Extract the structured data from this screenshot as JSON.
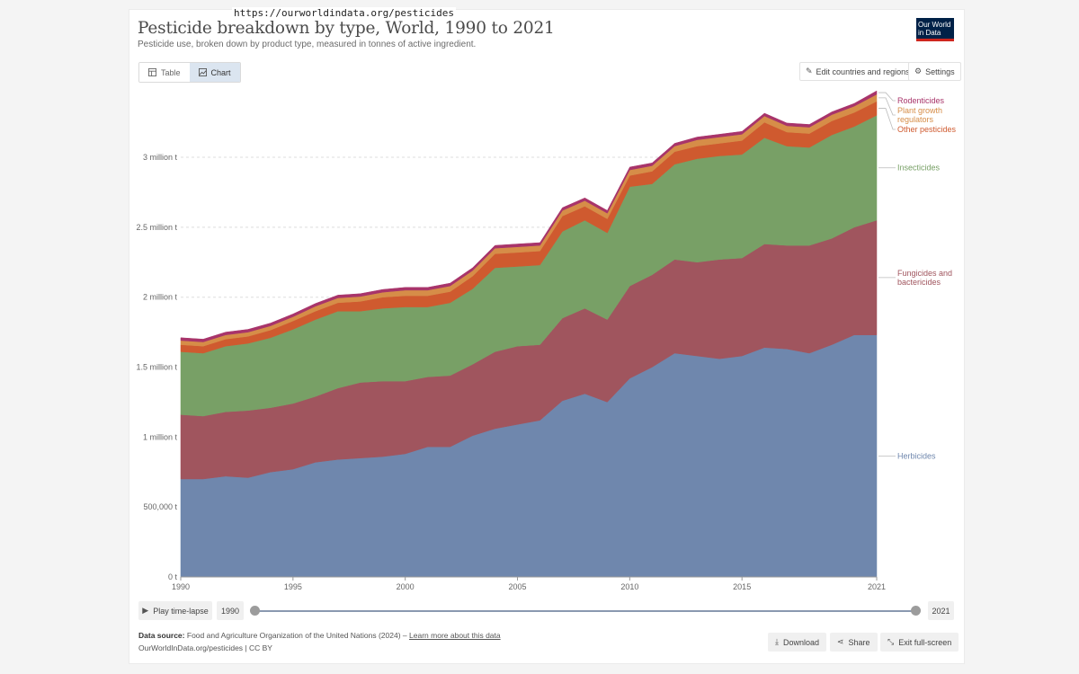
{
  "browser": {
    "url": "https://ourworldindata.org/pesticides"
  },
  "header": {
    "title": "Pesticide breakdown by type, World, 1990 to 2021",
    "subtitle": "Pesticide use, broken down by product type, measured in tonnes of active ingredient.",
    "logo_line1": "Our World",
    "logo_line2": "in Data"
  },
  "tabs": [
    {
      "label": "Table",
      "icon": "table-icon",
      "active": false
    },
    {
      "label": "Chart",
      "icon": "chart-icon",
      "active": true
    }
  ],
  "toolbar": {
    "edit_label": "Edit countries and regions",
    "settings_label": "Settings"
  },
  "controls": {
    "play_label": "Play time-lapse",
    "start_year": "1990",
    "end_year": "2021"
  },
  "footer": {
    "source_label": "Data source:",
    "source_text": "Food and Agriculture Organization of the United Nations (2024)",
    "source_sep": "–",
    "learn_more": "Learn more about this data",
    "license": "OurWorldInData.org/pesticides | CC BY",
    "download_label": "Download",
    "share_label": "Share",
    "fullscreen_label": "Exit full-screen"
  },
  "colors": {
    "herbicides": "#6f87ad",
    "fungicides": "#a0555e",
    "insecticides": "#78a066",
    "other": "#cf5a2f",
    "plant_growth": "#d68d48",
    "rodenticides": "#a8346a"
  },
  "chart_data": {
    "type": "area",
    "stacked": true,
    "title": "Pesticide breakdown by type, World, 1990 to 2021",
    "x_ticks": [
      1990,
      1995,
      2000,
      2005,
      2010,
      2015,
      2021
    ],
    "y_ticks": [
      {
        "value": 0,
        "label": "0 t"
      },
      {
        "value": 500000,
        "label": "500,000 t"
      },
      {
        "value": 1000000,
        "label": "1 million t"
      },
      {
        "value": 1500000,
        "label": "1.5 million t"
      },
      {
        "value": 2000000,
        "label": "2 million t"
      },
      {
        "value": 2500000,
        "label": "2.5 million t"
      },
      {
        "value": 3000000,
        "label": "3 million t"
      }
    ],
    "ylim": [
      0,
      3450000
    ],
    "xlim": [
      1990,
      2021
    ],
    "grid": true,
    "legend": "right",
    "x": [
      1990,
      1991,
      1992,
      1993,
      1994,
      1995,
      1996,
      1997,
      1998,
      1999,
      2000,
      2001,
      2002,
      2003,
      2004,
      2005,
      2006,
      2007,
      2008,
      2009,
      2010,
      2011,
      2012,
      2013,
      2014,
      2015,
      2016,
      2017,
      2018,
      2019,
      2020,
      2021
    ],
    "series": [
      {
        "name": "Herbicides",
        "key": "herbicides",
        "label_lines": [
          "Herbicides"
        ],
        "values": [
          700000,
          700000,
          720000,
          710000,
          750000,
          770000,
          820000,
          840000,
          850000,
          860000,
          880000,
          930000,
          930000,
          1010000,
          1060000,
          1090000,
          1120000,
          1260000,
          1310000,
          1250000,
          1420000,
          1500000,
          1600000,
          1580000,
          1560000,
          1580000,
          1640000,
          1630000,
          1600000,
          1660000,
          1730000,
          1730000
        ]
      },
      {
        "name": "Fungicides and bactericides",
        "key": "fungicides",
        "label_lines": [
          "Fungicides and",
          "bactericides"
        ],
        "values": [
          460000,
          450000,
          460000,
          480000,
          460000,
          470000,
          470000,
          510000,
          540000,
          540000,
          520000,
          500000,
          510000,
          510000,
          550000,
          560000,
          540000,
          590000,
          610000,
          590000,
          660000,
          660000,
          670000,
          670000,
          710000,
          700000,
          740000,
          740000,
          770000,
          760000,
          770000,
          820000
        ]
      },
      {
        "name": "Insecticides",
        "key": "insecticides",
        "label_lines": [
          "Insecticides"
        ],
        "values": [
          450000,
          450000,
          470000,
          480000,
          500000,
          530000,
          550000,
          550000,
          510000,
          520000,
          530000,
          500000,
          520000,
          540000,
          600000,
          570000,
          570000,
          620000,
          630000,
          620000,
          710000,
          650000,
          680000,
          740000,
          740000,
          740000,
          760000,
          710000,
          700000,
          740000,
          720000,
          750000
        ]
      },
      {
        "name": "Other pesticides",
        "key": "other",
        "label_lines": [
          "Other pesticides"
        ],
        "values": [
          50000,
          50000,
          50000,
          50000,
          55000,
          60000,
          60000,
          60000,
          70000,
          80000,
          80000,
          80000,
          80000,
          90000,
          100000,
          100000,
          100000,
          110000,
          100000,
          100000,
          80000,
          90000,
          90000,
          90000,
          90000,
          100000,
          110000,
          100000,
          100000,
          100000,
          100000,
          100000
        ]
      },
      {
        "name": "Plant growth regulators",
        "key": "plant_growth",
        "label_lines": [
          "Plant growth",
          "regulators"
        ],
        "values": [
          30000,
          30000,
          30000,
          30000,
          30000,
          30000,
          35000,
          35000,
          35000,
          35000,
          40000,
          40000,
          40000,
          40000,
          40000,
          40000,
          40000,
          40000,
          40000,
          40000,
          40000,
          40000,
          40000,
          45000,
          45000,
          45000,
          45000,
          45000,
          45000,
          45000,
          45000,
          50000
        ]
      },
      {
        "name": "Rodenticides",
        "key": "rodenticides",
        "label_lines": [
          "Rodenticides"
        ],
        "values": [
          20000,
          20000,
          20000,
          20000,
          20000,
          20000,
          20000,
          20000,
          20000,
          20000,
          20000,
          20000,
          20000,
          20000,
          20000,
          20000,
          20000,
          20000,
          20000,
          20000,
          20000,
          20000,
          20000,
          20000,
          20000,
          20000,
          20000,
          20000,
          20000,
          20000,
          20000,
          25000
        ]
      }
    ]
  }
}
